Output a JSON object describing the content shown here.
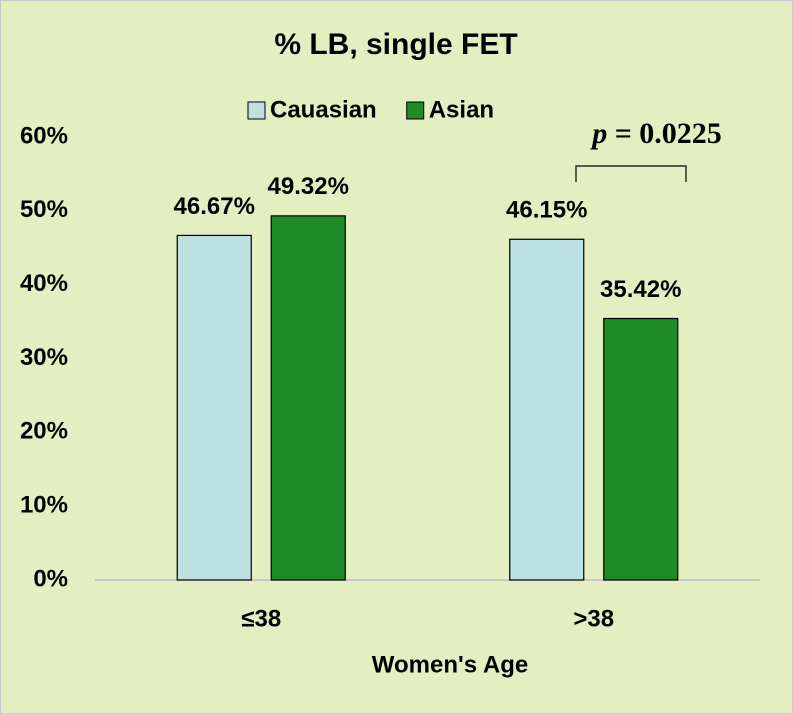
{
  "chart_data": {
    "type": "bar",
    "title": "% LB, single FET",
    "categories": [
      "≤38",
      ">38"
    ],
    "series": [
      {
        "name": "Cauasian",
        "color": "#bde0e3",
        "values": [
          46.67,
          46.15
        ],
        "value_labels": [
          "46.67%",
          "46.15%"
        ]
      },
      {
        "name": "Asian",
        "color": "#1e8a28",
        "values": [
          49.32,
          35.42
        ],
        "value_labels": [
          "49.32%",
          "35.42%"
        ]
      }
    ],
    "ylim": [
      0,
      60
    ],
    "yticks": [
      {
        "value": 0,
        "label": "0%"
      },
      {
        "value": 10,
        "label": "10%"
      },
      {
        "value": 20,
        "label": "20%"
      },
      {
        "value": 30,
        "label": "30%"
      },
      {
        "value": 40,
        "label": "40%"
      },
      {
        "value": 50,
        "label": "50%"
      },
      {
        "value": 60,
        "label": "60%"
      }
    ],
    "grid": false,
    "legend": "top",
    "xlabel": "Women's Age",
    "annotation_var": "p",
    "annotation_value": "= 0.0225"
  }
}
